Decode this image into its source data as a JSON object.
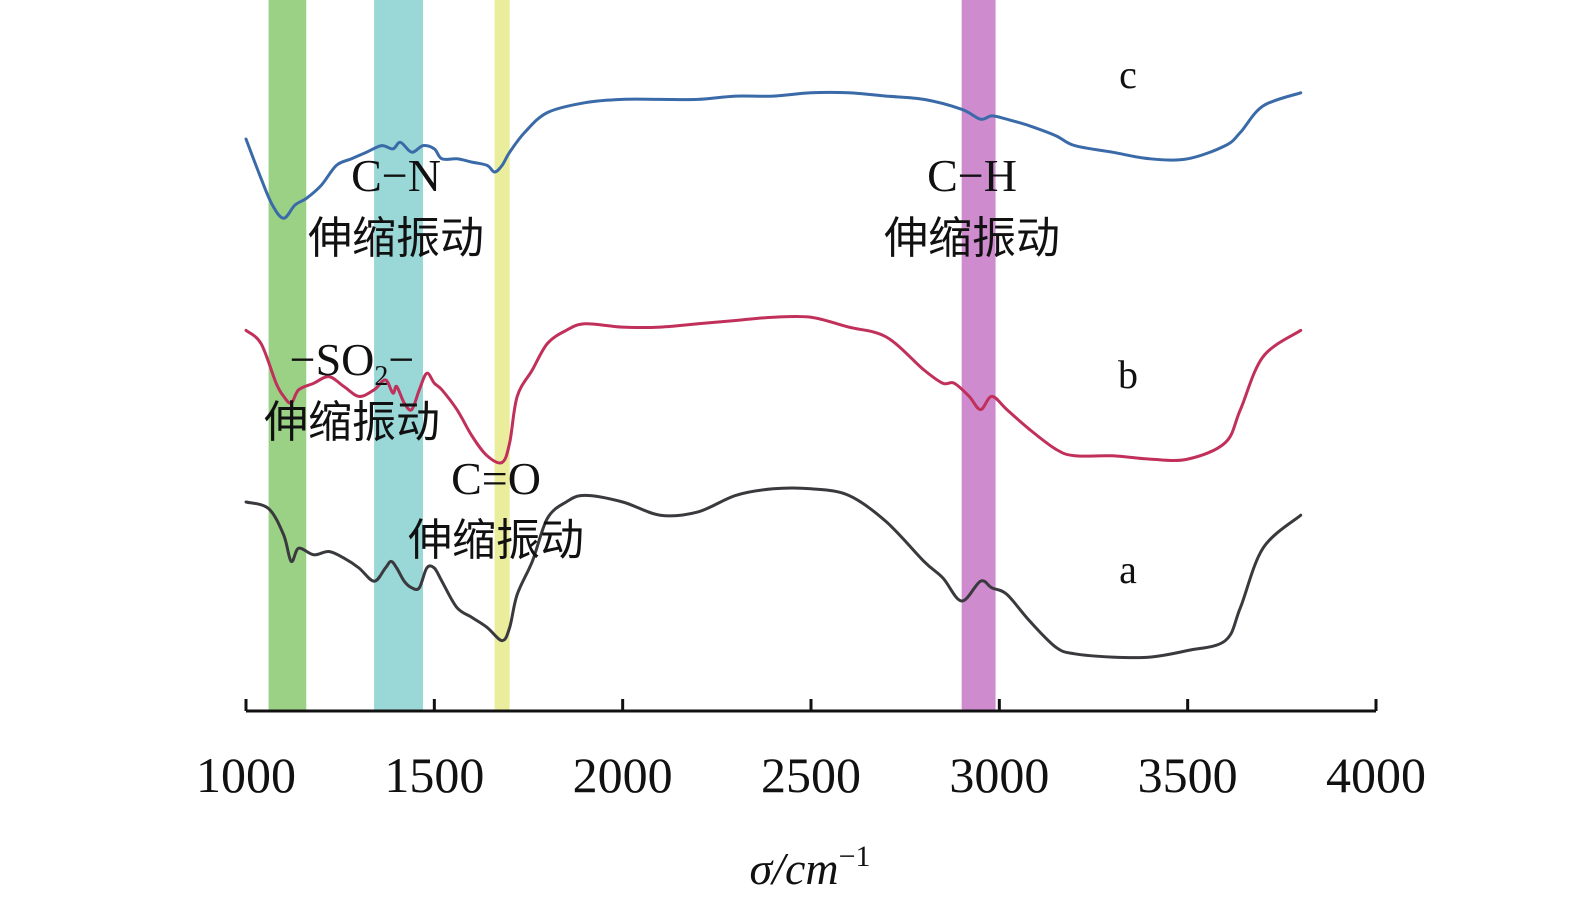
{
  "chart_data": {
    "type": "line",
    "xlabel": "σ/cm",
    "xlabel_sup": "−1",
    "xlim": [
      1000,
      4000
    ],
    "xticks": [
      1000,
      1500,
      2000,
      2500,
      3000,
      3500,
      4000
    ],
    "grid": false,
    "y_axis_shown": false,
    "series": [
      {
        "name": "a",
        "color": "#3a3a3e",
        "x": [
          1000,
          1060,
          1100,
          1120,
          1140,
          1180,
          1220,
          1260,
          1300,
          1340,
          1370,
          1385,
          1400,
          1420,
          1440,
          1460,
          1480,
          1500,
          1520,
          1560,
          1600,
          1640,
          1680,
          1700,
          1720,
          1760,
          1800,
          1850,
          1900,
          2000,
          2100,
          2200,
          2300,
          2400,
          2500,
          2600,
          2700,
          2800,
          2850,
          2900,
          2950,
          2980,
          3020,
          3080,
          3150,
          3200,
          3300,
          3400,
          3500,
          3600,
          3640,
          3700,
          3800
        ],
        "y": [
          60,
          58,
          50,
          42,
          46,
          44,
          45,
          43,
          40,
          36,
          40,
          42,
          40,
          36,
          34,
          34,
          40,
          40,
          36,
          28,
          25,
          22,
          18,
          22,
          32,
          42,
          55,
          60,
          62,
          60,
          56,
          57,
          62,
          64,
          64,
          62,
          54,
          42,
          37,
          30,
          36,
          34,
          32,
          24,
          16,
          14,
          13,
          13,
          15,
          18,
          28,
          46,
          56
        ]
      },
      {
        "name": "b",
        "color": "#c0305a",
        "x": [
          1000,
          1040,
          1080,
          1100,
          1120,
          1140,
          1180,
          1220,
          1260,
          1300,
          1340,
          1370,
          1390,
          1400,
          1420,
          1440,
          1460,
          1480,
          1500,
          1520,
          1560,
          1600,
          1640,
          1680,
          1700,
          1720,
          1760,
          1800,
          1850,
          1900,
          2000,
          2100,
          2200,
          2300,
          2400,
          2500,
          2600,
          2700,
          2800,
          2850,
          2880,
          2920,
          2950,
          2980,
          3020,
          3080,
          3150,
          3200,
          3300,
          3400,
          3500,
          3600,
          3640,
          3700,
          3800
        ],
        "y": [
          112,
          108,
          96,
          92,
          90,
          94,
          96,
          98,
          95,
          92,
          94,
          97,
          93,
          95,
          90,
          88,
          94,
          99,
          96,
          94,
          88,
          80,
          74,
          72,
          78,
          92,
          100,
          108,
          112,
          114,
          113,
          113,
          114,
          115,
          116,
          116,
          113,
          110,
          100,
          96,
          96,
          92,
          88,
          92,
          88,
          82,
          76,
          74,
          74,
          73,
          73,
          78,
          88,
          104,
          112
        ]
      },
      {
        "name": "c",
        "color": "#3a6aa8",
        "x": [
          1000,
          1040,
          1070,
          1100,
          1130,
          1160,
          1200,
          1240,
          1280,
          1320,
          1360,
          1390,
          1410,
          1440,
          1470,
          1500,
          1520,
          1560,
          1600,
          1640,
          1660,
          1680,
          1700,
          1740,
          1800,
          1900,
          2000,
          2100,
          2200,
          2300,
          2400,
          2500,
          2600,
          2700,
          2800,
          2900,
          2950,
          2980,
          3020,
          3080,
          3150,
          3200,
          3300,
          3400,
          3500,
          3600,
          3640,
          3700,
          3800
        ],
        "y": [
          170,
          158,
          150,
          146,
          150,
          152,
          156,
          162,
          164,
          166,
          168,
          167,
          169,
          166,
          168,
          167,
          164,
          164,
          163,
          162,
          160,
          162,
          166,
          172,
          178,
          181,
          182,
          182,
          182,
          183,
          183,
          184,
          184,
          183,
          182,
          179,
          176,
          177,
          176,
          174,
          171,
          168,
          166,
          164,
          164,
          168,
          172,
          180,
          184
        ]
      }
    ],
    "series_labels": [
      "a",
      "b",
      "c"
    ],
    "bands": [
      {
        "from": 1060,
        "to": 1160,
        "color": "#8fcc78"
      },
      {
        "from": 1340,
        "to": 1470,
        "color": "#8fd3d3"
      },
      {
        "from": 1660,
        "to": 1700,
        "color": "#e8eb90"
      },
      {
        "from": 2900,
        "to": 2990,
        "color": "#c97ec9"
      }
    ],
    "annotations": [
      {
        "formula": "C−N",
        "text": "伸缩振动"
      },
      {
        "formula": "−SO",
        "subscript": "2",
        "formula_tail": "−",
        "text": "伸缩振动"
      },
      {
        "formula": "C=O",
        "text": "伸缩振动"
      },
      {
        "formula": "C−H",
        "text": "伸缩振动"
      }
    ]
  }
}
